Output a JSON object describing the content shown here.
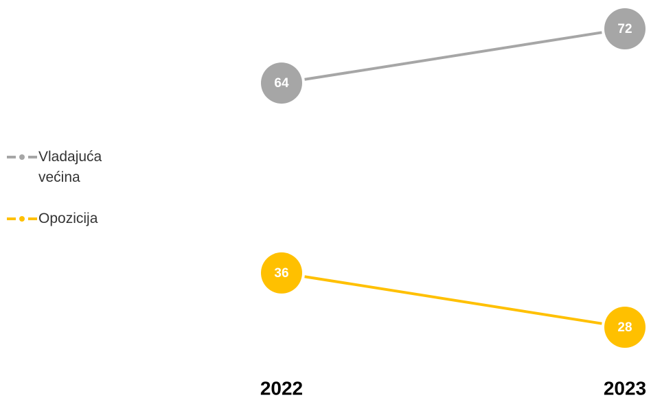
{
  "chart_data": {
    "type": "line",
    "categories": [
      "2022",
      "2023"
    ],
    "series": [
      {
        "name": "Vladajuća većina",
        "color": "#a6a6a6",
        "values": [
          64,
          72
        ]
      },
      {
        "name": "Opozicija",
        "color": "#ffc000",
        "values": [
          36,
          28
        ]
      }
    ],
    "legend": "left",
    "data_labels": true
  }
}
